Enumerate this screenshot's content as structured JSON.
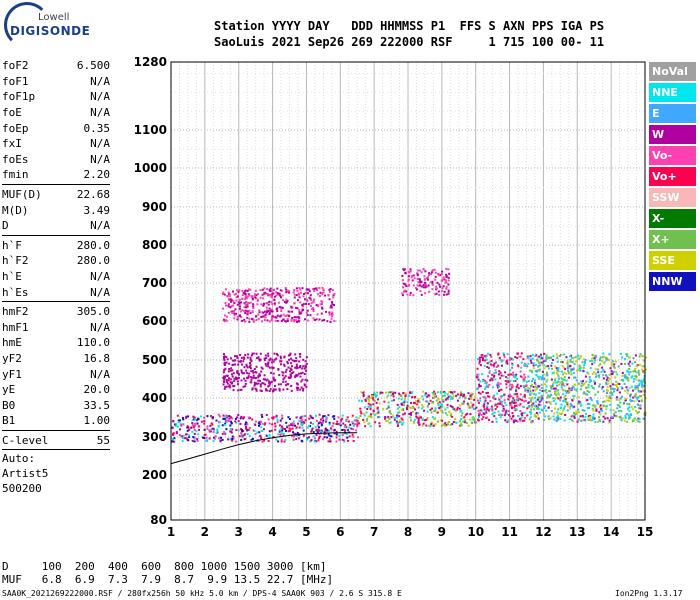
{
  "logo": {
    "line1": "Lowell",
    "line2": "DIGISONDE"
  },
  "header": {
    "line1": "Station YYYY DAY   DDD HHMMSS P1  FFS S AXN PPS IGA PS",
    "line2": "SaoLuis 2021 Sep26 269 222000 RSF     1 715 100 00- 11"
  },
  "params": {
    "group1": [
      {
        "name": "foF2",
        "value": "6.500"
      },
      {
        "name": "foF1",
        "value": "N/A"
      },
      {
        "name": "foF1p",
        "value": "N/A"
      },
      {
        "name": "foE",
        "value": "N/A"
      },
      {
        "name": "foEp",
        "value": "0.35"
      },
      {
        "name": "fxI",
        "value": "N/A"
      },
      {
        "name": "foEs",
        "value": "N/A"
      },
      {
        "name": "fmin",
        "value": "2.20"
      }
    ],
    "group2": [
      {
        "name": "MUF(D)",
        "value": "22.68"
      },
      {
        "name": "M(D)",
        "value": "3.49"
      },
      {
        "name": "D",
        "value": "N/A"
      }
    ],
    "group3": [
      {
        "name": "h`F",
        "value": "280.0"
      },
      {
        "name": "h`F2",
        "value": "280.0"
      },
      {
        "name": "h`E",
        "value": "N/A"
      },
      {
        "name": "h`Es",
        "value": "N/A"
      }
    ],
    "group4": [
      {
        "name": "hmF2",
        "value": "305.0"
      },
      {
        "name": "hmF1",
        "value": "N/A"
      },
      {
        "name": "hmE",
        "value": "110.0"
      },
      {
        "name": "yF2",
        "value": "16.8"
      },
      {
        "name": "yF1",
        "value": "N/A"
      },
      {
        "name": "yE",
        "value": "20.0"
      },
      {
        "name": "B0",
        "value": "33.5"
      },
      {
        "name": "B1",
        "value": "1.00"
      }
    ],
    "group5": [
      {
        "name": "C-level",
        "value": "55"
      }
    ],
    "auto": [
      "Auto:",
      "Artist5",
      "500200"
    ]
  },
  "legend": [
    {
      "label": "NoVal",
      "color": "#a0a0a0"
    },
    {
      "label": "NNE",
      "color": "#00e5ee"
    },
    {
      "label": "E",
      "color": "#3fa8ff"
    },
    {
      "label": "W",
      "color": "#b000a0"
    },
    {
      "label": "Vo-",
      "color": "#ff40b0"
    },
    {
      "label": "Vo+",
      "color": "#ff0050"
    },
    {
      "label": "SSW",
      "color": "#f8b8b8"
    },
    {
      "label": "X-",
      "color": "#007a00"
    },
    {
      "label": "X+",
      "color": "#70c050"
    },
    {
      "label": "SSE",
      "color": "#d0d000"
    },
    {
      "label": "NNW",
      "color": "#1010c0"
    }
  ],
  "chart_data": {
    "type": "scatter",
    "title": "",
    "xlabel": "",
    "ylabel": "",
    "xlim": [
      1,
      15
    ],
    "ylim": [
      80,
      1280
    ],
    "y_scale": "custom (ionogram virtual height)",
    "grid": true,
    "xticks": [
      "1",
      "2",
      "3",
      "4",
      "5",
      "6",
      "7",
      "8",
      "9",
      "10",
      "11",
      "12",
      "13",
      "14",
      "15"
    ],
    "yticks": [
      "1280",
      "1100",
      "1000",
      "900",
      "800",
      "700",
      "600",
      "500",
      "400",
      "300",
      "200",
      "80"
    ],
    "ytick_values": [
      1280,
      1100,
      1000,
      900,
      800,
      700,
      600,
      500,
      400,
      300,
      200,
      80
    ],
    "trace": {
      "name": "",
      "x": [
        1.0,
        1.5,
        2.0,
        2.5,
        3.0,
        3.5,
        4.0,
        4.5,
        5.0,
        5.5,
        6.0,
        6.5
      ],
      "y": [
        230,
        242,
        255,
        268,
        280,
        290,
        298,
        304,
        308,
        310,
        311,
        311
      ]
    },
    "echo_regions": [
      {
        "x": [
          1.0,
          6.5
        ],
        "y": [
          290,
          360
        ],
        "colors": [
          "NNW",
          "W",
          "Vo+",
          "Vo-",
          "NNE"
        ]
      },
      {
        "x": [
          6.5,
          10.0
        ],
        "y": [
          330,
          420
        ],
        "colors": [
          "W",
          "Vo+",
          "X+",
          "SSE",
          "NNE"
        ]
      },
      {
        "x": [
          10.0,
          11.5
        ],
        "y": [
          340,
          520
        ],
        "colors": [
          "Vo+",
          "W",
          "Vo-",
          "NNE"
        ]
      },
      {
        "x": [
          11.5,
          15.0
        ],
        "y": [
          340,
          520
        ],
        "colors": [
          "NNE",
          "E",
          "W",
          "X+",
          "SSE"
        ]
      },
      {
        "x": [
          2.5,
          5.8
        ],
        "y": [
          600,
          690
        ],
        "colors": [
          "W",
          "Vo-"
        ]
      },
      {
        "x": [
          7.8,
          9.2
        ],
        "y": [
          670,
          740
        ],
        "colors": [
          "W",
          "Vo-"
        ]
      },
      {
        "x": [
          2.5,
          5.0
        ],
        "y": [
          420,
          520
        ],
        "colors": [
          "W"
        ]
      }
    ]
  },
  "bottom": {
    "d_row": "D     100  200  400  600  800 1000 1500 3000 [km]",
    "muf_row": "MUF   6.8  6.9  7.3  7.9  8.7  9.9 13.5 22.7 [MHz]",
    "footer_left": "SAA0K_2021269222000.RSF / 280fx256h 50 kHz 5.0 km / DPS-4 SAA0K 903 / 2.6 S 315.8 E",
    "footer_right": "Ion2Png 1.3.17"
  }
}
